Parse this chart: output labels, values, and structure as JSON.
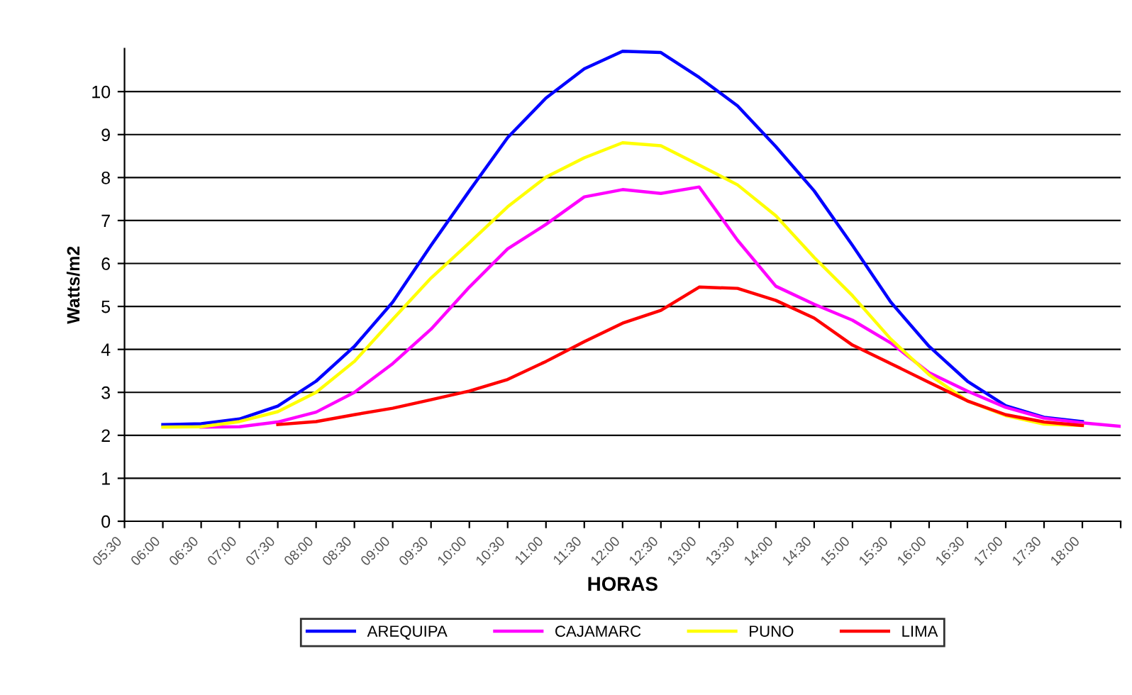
{
  "chart_data": {
    "type": "line",
    "xlabel": "HORAS",
    "ylabel": "Watts/m2",
    "categories": [
      "05:30",
      "06:00",
      "06:30",
      "07:00",
      "07:30",
      "08:00",
      "08:30",
      "09:00",
      "09:30",
      "10:00",
      "10:30",
      "11:00",
      "11:30",
      "12:00",
      "12:30",
      "13:00",
      "13:30",
      "14:00",
      "14:30",
      "15:00",
      "15:30",
      "16:00",
      "16:30",
      "17:00",
      "17:30",
      "18:00",
      null
    ],
    "series": [
      {
        "name": "AREQUIPA",
        "color": "#0000ff",
        "values": [
          null,
          2.25,
          2.27,
          2.38,
          2.68,
          3.26,
          4.07,
          5.1,
          6.42,
          7.69,
          8.93,
          9.85,
          10.53,
          10.94,
          10.91,
          10.33,
          9.67,
          8.72,
          7.69,
          6.42,
          5.1,
          4.07,
          3.26,
          2.69,
          2.42,
          2.32,
          null
        ]
      },
      {
        "name": "CAJAMARC",
        "color": "#ff00ff",
        "values": [
          null,
          null,
          2.19,
          2.2,
          2.31,
          2.54,
          3.0,
          3.67,
          4.47,
          5.45,
          6.34,
          6.91,
          7.55,
          7.72,
          7.63,
          7.78,
          6.54,
          5.47,
          5.05,
          4.68,
          4.15,
          3.46,
          3.03,
          2.65,
          2.4,
          2.29,
          2.21
        ]
      },
      {
        "name": "PUNO",
        "color": "#ffff00",
        "values": [
          null,
          2.19,
          2.2,
          2.32,
          2.55,
          3.0,
          3.72,
          4.7,
          5.66,
          6.48,
          7.32,
          8.01,
          8.46,
          8.81,
          8.74,
          8.29,
          7.83,
          7.11,
          6.14,
          5.25,
          4.24,
          3.41,
          2.8,
          2.46,
          2.26,
          2.23,
          null
        ]
      },
      {
        "name": "LIMA",
        "color": "#ff0000",
        "values": [
          null,
          null,
          null,
          null,
          2.25,
          2.32,
          2.48,
          2.63,
          2.83,
          3.03,
          3.3,
          3.72,
          4.18,
          4.61,
          4.91,
          5.45,
          5.42,
          5.14,
          4.73,
          4.1,
          3.67,
          3.23,
          2.8,
          2.48,
          2.31,
          2.23,
          null
        ]
      }
    ],
    "ylim": [
      0,
      11
    ],
    "yticks": [
      0,
      1,
      2,
      3,
      4,
      5,
      6,
      7,
      8,
      9,
      10
    ],
    "grid": "y",
    "legend": "bottom",
    "marker": "none",
    "line_style": "solid"
  }
}
